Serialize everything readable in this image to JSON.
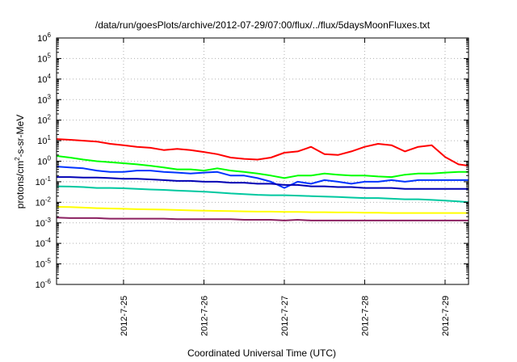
{
  "chart_data": {
    "type": "line",
    "title": "/data/run/goesPlots/archive/2012-07-29/07:00/flux/../flux/5daysMoonFluxes.txt",
    "xlabel": "Coordinated Universal Time (UTC)",
    "ylabel": "protons/cm2-s-sr-MeV",
    "ylabel_parts": {
      "base": "protons/cm",
      "sup": "2",
      "rest": "-s-sr-MeV"
    },
    "x_scale": "time",
    "x_range": [
      "2012-07-24 04:00",
      "2012-07-29 07:00"
    ],
    "x_tick_labels": [
      "2012-7-25",
      "2012-7-26",
      "2012-7-27",
      "2012-7-28",
      "2012-7-29"
    ],
    "x_tick_times": [
      "2012-07-25 00:00",
      "2012-07-26 00:00",
      "2012-07-27 00:00",
      "2012-07-28 00:00",
      "2012-07-29 00:00"
    ],
    "y_scale": "log",
    "y_range": [
      1e-06,
      1000000.0
    ],
    "y_tick_labels": [
      {
        "base": "10",
        "exp": "6",
        "value": 1000000.0
      },
      {
        "base": "10",
        "exp": "5",
        "value": 100000.0
      },
      {
        "base": "10",
        "exp": "4",
        "value": 10000.0
      },
      {
        "base": "10",
        "exp": "3",
        "value": 1000.0
      },
      {
        "base": "10",
        "exp": "2",
        "value": 100.0
      },
      {
        "base": "10",
        "exp": "1",
        "value": 10.0
      },
      {
        "base": "10",
        "exp": "0",
        "value": 1
      },
      {
        "base": "10",
        "exp": "-1",
        "value": 0.1
      },
      {
        "base": "10",
        "exp": "-2",
        "value": 0.01
      },
      {
        "base": "10",
        "exp": "-3",
        "value": 0.001
      },
      {
        "base": "10",
        "exp": "-4",
        "value": 0.0001
      },
      {
        "base": "10",
        "exp": "-5",
        "value": 1e-05
      },
      {
        "base": "10",
        "exp": "-6",
        "value": 1e-06
      }
    ],
    "grid": true,
    "legend": "none",
    "x": [
      "2012-07-24 04:00",
      "2012-07-24 08:00",
      "2012-07-24 12:00",
      "2012-07-24 16:00",
      "2012-07-24 20:00",
      "2012-07-25 00:00",
      "2012-07-25 04:00",
      "2012-07-25 08:00",
      "2012-07-25 12:00",
      "2012-07-25 16:00",
      "2012-07-25 20:00",
      "2012-07-26 00:00",
      "2012-07-26 04:00",
      "2012-07-26 08:00",
      "2012-07-26 12:00",
      "2012-07-26 16:00",
      "2012-07-26 20:00",
      "2012-07-27 00:00",
      "2012-07-27 04:00",
      "2012-07-27 08:00",
      "2012-07-27 12:00",
      "2012-07-27 16:00",
      "2012-07-27 20:00",
      "2012-07-28 00:00",
      "2012-07-28 04:00",
      "2012-07-28 08:00",
      "2012-07-28 12:00",
      "2012-07-28 16:00",
      "2012-07-28 20:00",
      "2012-07-29 00:00",
      "2012-07-29 04:00",
      "2012-07-29 07:00"
    ],
    "series": [
      {
        "color": "#ff0000",
        "values": [
          12,
          11,
          10,
          9,
          7,
          6,
          5,
          4.5,
          3.5,
          4,
          3.5,
          2.8,
          2.2,
          1.5,
          1.3,
          1.2,
          1.5,
          2.6,
          3,
          5,
          2.2,
          2,
          3,
          5,
          7,
          6,
          3,
          5,
          6,
          1.6,
          0.7,
          0.6
        ]
      },
      {
        "color": "#00ff00",
        "values": [
          1.8,
          1.5,
          1.2,
          1,
          0.9,
          0.8,
          0.7,
          0.6,
          0.5,
          0.4,
          0.4,
          0.35,
          0.45,
          0.35,
          0.3,
          0.25,
          0.2,
          0.15,
          0.2,
          0.2,
          0.25,
          0.22,
          0.2,
          0.2,
          0.18,
          0.17,
          0.22,
          0.25,
          0.25,
          0.28,
          0.3,
          0.3
        ]
      },
      {
        "color": "#0033ff",
        "values": [
          0.55,
          0.5,
          0.45,
          0.35,
          0.3,
          0.3,
          0.35,
          0.35,
          0.3,
          0.28,
          0.25,
          0.28,
          0.3,
          0.2,
          0.2,
          0.15,
          0.1,
          0.05,
          0.1,
          0.08,
          0.12,
          0.1,
          0.08,
          0.1,
          0.1,
          0.12,
          0.1,
          0.12,
          0.12,
          0.12,
          0.12,
          0.12
        ]
      },
      {
        "color": "#0000b4",
        "values": [
          0.17,
          0.17,
          0.16,
          0.16,
          0.15,
          0.14,
          0.14,
          0.13,
          0.12,
          0.11,
          0.11,
          0.1,
          0.1,
          0.09,
          0.09,
          0.08,
          0.08,
          0.07,
          0.07,
          0.06,
          0.06,
          0.055,
          0.055,
          0.05,
          0.05,
          0.05,
          0.045,
          0.045,
          0.045,
          0.045,
          0.045,
          0.045
        ]
      },
      {
        "color": "#00c8a0",
        "values": [
          0.06,
          0.058,
          0.055,
          0.05,
          0.05,
          0.048,
          0.045,
          0.042,
          0.04,
          0.037,
          0.035,
          0.033,
          0.03,
          0.027,
          0.025,
          0.023,
          0.022,
          0.022,
          0.021,
          0.02,
          0.019,
          0.018,
          0.017,
          0.016,
          0.016,
          0.015,
          0.014,
          0.014,
          0.013,
          0.012,
          0.011,
          0.01
        ]
      },
      {
        "color": "#ffff00",
        "values": [
          0.006,
          0.0058,
          0.0055,
          0.0052,
          0.005,
          0.0048,
          0.0046,
          0.0045,
          0.0044,
          0.0042,
          0.004,
          0.0039,
          0.0038,
          0.0037,
          0.0036,
          0.0035,
          0.0035,
          0.0034,
          0.0034,
          0.0033,
          0.0033,
          0.0032,
          0.0032,
          0.0031,
          0.0031,
          0.003,
          0.003,
          0.003,
          0.003,
          0.003,
          0.003,
          0.003
        ]
      },
      {
        "color": "#8b2060",
        "values": [
          0.0018,
          0.0017,
          0.0017,
          0.0017,
          0.0016,
          0.0016,
          0.0016,
          0.0016,
          0.0016,
          0.0015,
          0.0015,
          0.0015,
          0.0015,
          0.0015,
          0.0014,
          0.0014,
          0.0014,
          0.0013,
          0.0014,
          0.0013,
          0.0013,
          0.0013,
          0.0013,
          0.0013,
          0.0013,
          0.0013,
          0.0013,
          0.0013,
          0.0013,
          0.0013,
          0.0013,
          0.0013
        ]
      }
    ]
  }
}
